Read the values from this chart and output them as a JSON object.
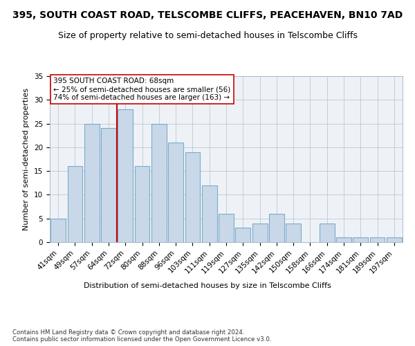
{
  "title_line1": "395, SOUTH COAST ROAD, TELSCOMBE CLIFFS, PEACEHAVEN, BN10 7AD",
  "title_line2": "Size of property relative to semi-detached houses in Telscombe Cliffs",
  "xlabel": "Distribution of semi-detached houses by size in Telscombe Cliffs",
  "ylabel": "Number of semi-detached properties",
  "footer": "Contains HM Land Registry data © Crown copyright and database right 2024.\nContains public sector information licensed under the Open Government Licence v3.0.",
  "categories": [
    "41sqm",
    "49sqm",
    "57sqm",
    "64sqm",
    "72sqm",
    "80sqm",
    "88sqm",
    "96sqm",
    "103sqm",
    "111sqm",
    "119sqm",
    "127sqm",
    "135sqm",
    "142sqm",
    "150sqm",
    "158sqm",
    "166sqm",
    "174sqm",
    "181sqm",
    "189sqm",
    "197sqm"
  ],
  "values": [
    5,
    16,
    25,
    24,
    28,
    16,
    25,
    21,
    19,
    12,
    6,
    3,
    4,
    6,
    4,
    0,
    4,
    1,
    1,
    1,
    1
  ],
  "bar_color": "#c8d8e8",
  "bar_edge_color": "#7aaac8",
  "highlight_line_color": "#cc0000",
  "annotation_text": "395 SOUTH COAST ROAD: 68sqm\n← 25% of semi-detached houses are smaller (56)\n74% of semi-detached houses are larger (163) →",
  "ylim": [
    0,
    35
  ],
  "yticks": [
    0,
    5,
    10,
    15,
    20,
    25,
    30,
    35
  ],
  "plot_bg_color": "#eef2f7",
  "title_fontsize": 10,
  "subtitle_fontsize": 9,
  "axis_label_fontsize": 8,
  "tick_fontsize": 7.5
}
